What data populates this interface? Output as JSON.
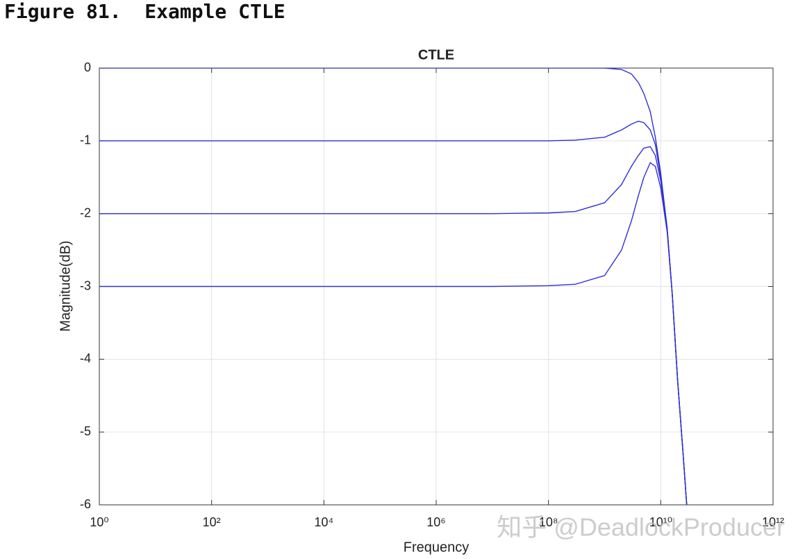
{
  "figure_caption": "Figure 81.  Example CTLE",
  "watermark": "知乎 @DeadlockProducer",
  "chart_data": {
    "type": "line",
    "title": "CTLE",
    "x_label": "Frequency",
    "y_label": "Magnitude(dB)",
    "x_scale": "log",
    "grid": true,
    "xlim": [
      1,
      1000000000000
    ],
    "ylim": [
      -6,
      0
    ],
    "xticks": [
      {
        "value": 1,
        "label": "10⁰"
      },
      {
        "value": 100,
        "label": "10²"
      },
      {
        "value": 10000,
        "label": "10⁴"
      },
      {
        "value": 1000000,
        "label": "10⁶"
      },
      {
        "value": 100000000,
        "label": "10⁸"
      },
      {
        "value": 10000000000,
        "label": "10¹⁰"
      },
      {
        "value": 1000000000000,
        "label": "10¹²"
      }
    ],
    "yticks": [
      -6,
      -5,
      -4,
      -3,
      -2,
      -1,
      0
    ],
    "x": [
      1,
      10000000,
      100000000,
      300000000,
      1000000000,
      2000000000,
      3000000000,
      4000000000,
      5000000000,
      6500000000,
      8000000000,
      10000000000,
      13000000000,
      16000000000,
      20000000000,
      25000000000,
      29000000000
    ],
    "series": [
      {
        "color": "#2f2fd6",
        "values": [
          0,
          0,
          0,
          0,
          0,
          -0.02,
          -0.08,
          -0.2,
          -0.35,
          -0.6,
          -0.95,
          -1.45,
          -2.2,
          -3.1,
          -4.3,
          -5.3,
          -6
        ]
      },
      {
        "color": "#2f2fd6",
        "values": [
          -1,
          -1,
          -1,
          -0.99,
          -0.95,
          -0.85,
          -0.77,
          -0.73,
          -0.75,
          -0.85,
          -1.05,
          -1.5,
          -2.2,
          -3.1,
          -4.3,
          -5.3,
          -6
        ]
      },
      {
        "color": "#2f2fd6",
        "values": [
          -2,
          -2,
          -1.99,
          -1.97,
          -1.85,
          -1.6,
          -1.35,
          -1.2,
          -1.1,
          -1.08,
          -1.2,
          -1.55,
          -2.2,
          -3.1,
          -4.3,
          -5.3,
          -6
        ]
      },
      {
        "color": "#2f2fd6",
        "values": [
          -3,
          -3,
          -2.99,
          -2.97,
          -2.85,
          -2.5,
          -2.1,
          -1.75,
          -1.5,
          -1.3,
          -1.35,
          -1.65,
          -2.25,
          -3.1,
          -4.3,
          -5.3,
          -6
        ]
      }
    ]
  }
}
